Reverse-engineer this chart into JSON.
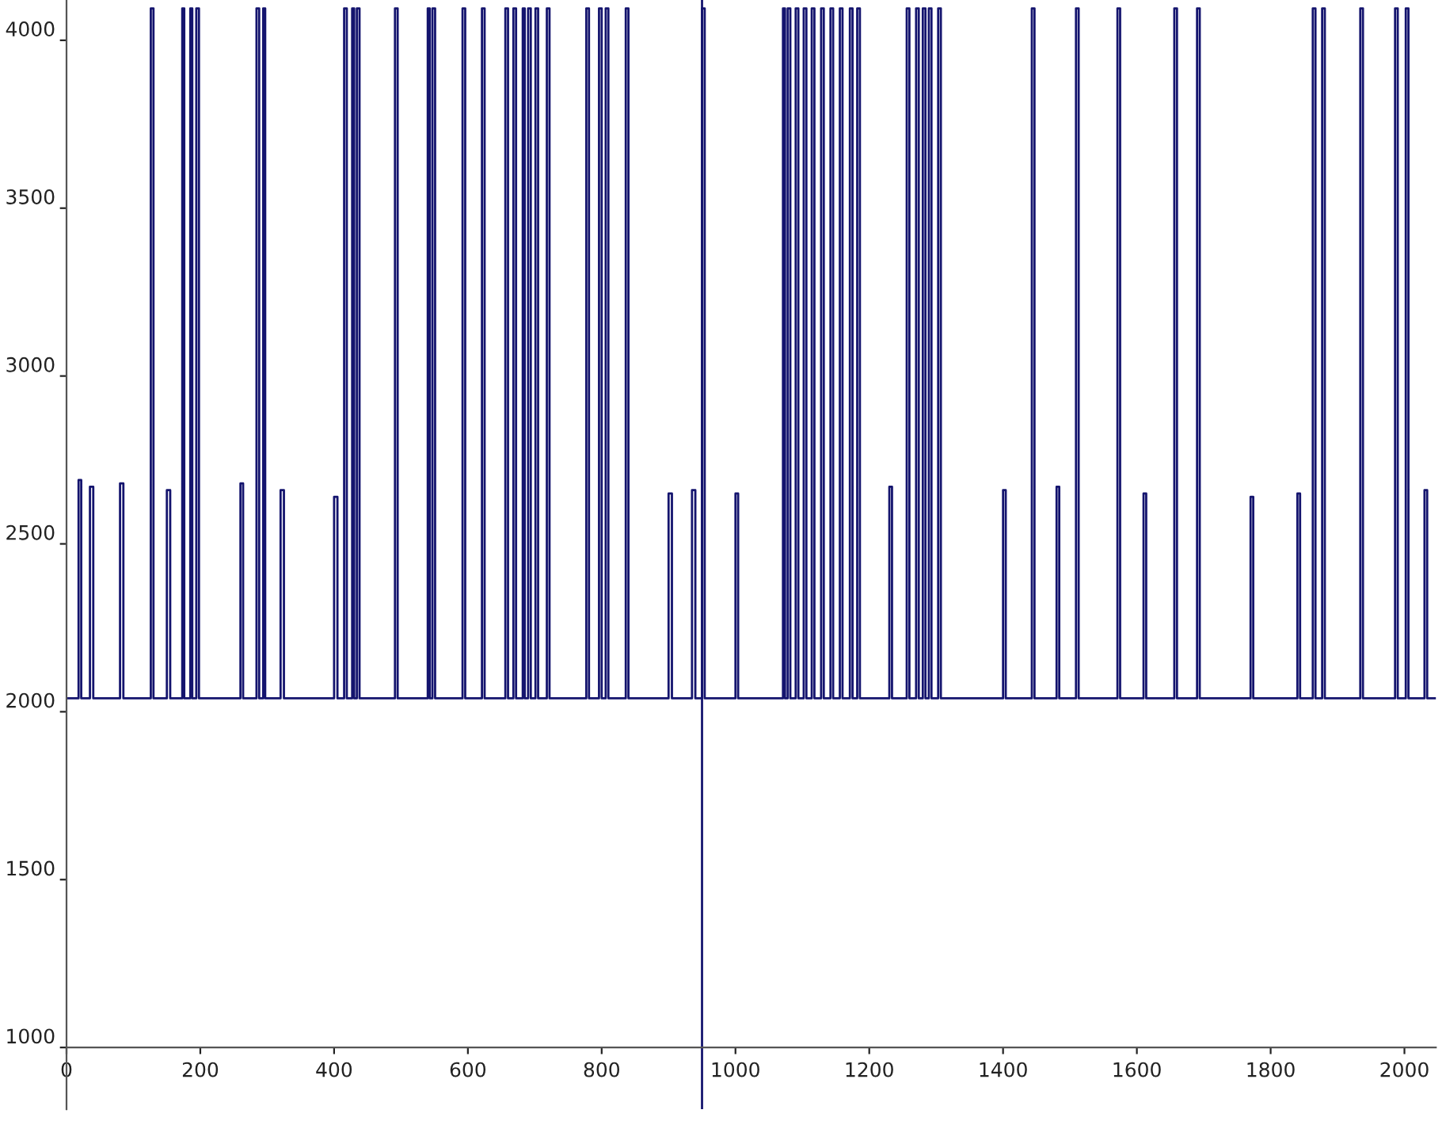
{
  "chart_data": {
    "type": "step",
    "xlim": [
      0,
      2047
    ],
    "ylim": [
      816,
      4120
    ],
    "xticks": [
      0,
      200,
      400,
      600,
      800,
      1000,
      1200,
      1400,
      1600,
      1800,
      2000
    ],
    "yticks": [
      1000,
      1500,
      2000,
      2500,
      3000,
      3500,
      4000
    ],
    "grid": false,
    "legend": false,
    "marker": "none",
    "line_style": "solid",
    "ref_lines": [
      {
        "axis": "x",
        "value": 950,
        "color": "#14146e"
      }
    ],
    "series": [
      {
        "color": "#14146e",
        "x": [
          0,
          18,
          22,
          35,
          40,
          80,
          85,
          126,
          130,
          150,
          155,
          173,
          176,
          185,
          188,
          194,
          198,
          260,
          264,
          284,
          288,
          294,
          297,
          320,
          325,
          400,
          405,
          415,
          419,
          427,
          430,
          434,
          438,
          491,
          495,
          540,
          543,
          547,
          551,
          592,
          596,
          621,
          625,
          656,
          660,
          668,
          672,
          682,
          685,
          690,
          694,
          701,
          705,
          718,
          722,
          777,
          781,
          796,
          800,
          806,
          810,
          836,
          840,
          900,
          905,
          935,
          940,
          950,
          954,
          1000,
          1004,
          1071,
          1074,
          1078,
          1082,
          1090,
          1094,
          1102,
          1106,
          1114,
          1118,
          1128,
          1132,
          1142,
          1146,
          1156,
          1160,
          1171,
          1175,
          1182,
          1186,
          1230,
          1234,
          1256,
          1260,
          1270,
          1274,
          1280,
          1284,
          1289,
          1293,
          1303,
          1307,
          1400,
          1404,
          1443,
          1447,
          1480,
          1484,
          1509,
          1513,
          1571,
          1575,
          1610,
          1614,
          1656,
          1660,
          1690,
          1694,
          1770,
          1774,
          1840,
          1844,
          1863,
          1867,
          1877,
          1881,
          1934,
          1938,
          1986,
          1990,
          2002,
          2006,
          2030,
          2034,
          2047
        ],
        "values": [
          2040,
          2690,
          2040,
          2670,
          2040,
          2680,
          2040,
          4095,
          2040,
          2660,
          2040,
          4095,
          2040,
          4095,
          2040,
          4095,
          2040,
          2680,
          2040,
          4095,
          2040,
          4095,
          2040,
          2660,
          2040,
          2640,
          2040,
          4095,
          2040,
          4095,
          2040,
          4095,
          2040,
          4095,
          2040,
          4095,
          2040,
          4095,
          2040,
          4095,
          2040,
          4095,
          2040,
          4095,
          2040,
          4095,
          2040,
          4095,
          2040,
          4095,
          2040,
          4095,
          2040,
          4095,
          2040,
          4095,
          2040,
          4095,
          2040,
          4095,
          2040,
          4095,
          2040,
          2650,
          2040,
          2660,
          2040,
          4095,
          2040,
          2650,
          2040,
          4095,
          2040,
          4095,
          2040,
          4095,
          2040,
          4095,
          2040,
          4095,
          2040,
          4095,
          2040,
          4095,
          2040,
          4095,
          2040,
          4095,
          2040,
          4095,
          2040,
          2670,
          2040,
          4095,
          2040,
          4095,
          2040,
          4095,
          2040,
          4095,
          2040,
          4095,
          2040,
          2660,
          2040,
          4095,
          2040,
          2670,
          2040,
          4095,
          2040,
          4095,
          2040,
          2650,
          2040,
          4095,
          2040,
          4095,
          2040,
          2640,
          2040,
          2650,
          2040,
          4095,
          2040,
          4095,
          2040,
          4095,
          2040,
          4095,
          2040,
          4095,
          2040,
          2660,
          2040,
          2040
        ]
      }
    ]
  }
}
